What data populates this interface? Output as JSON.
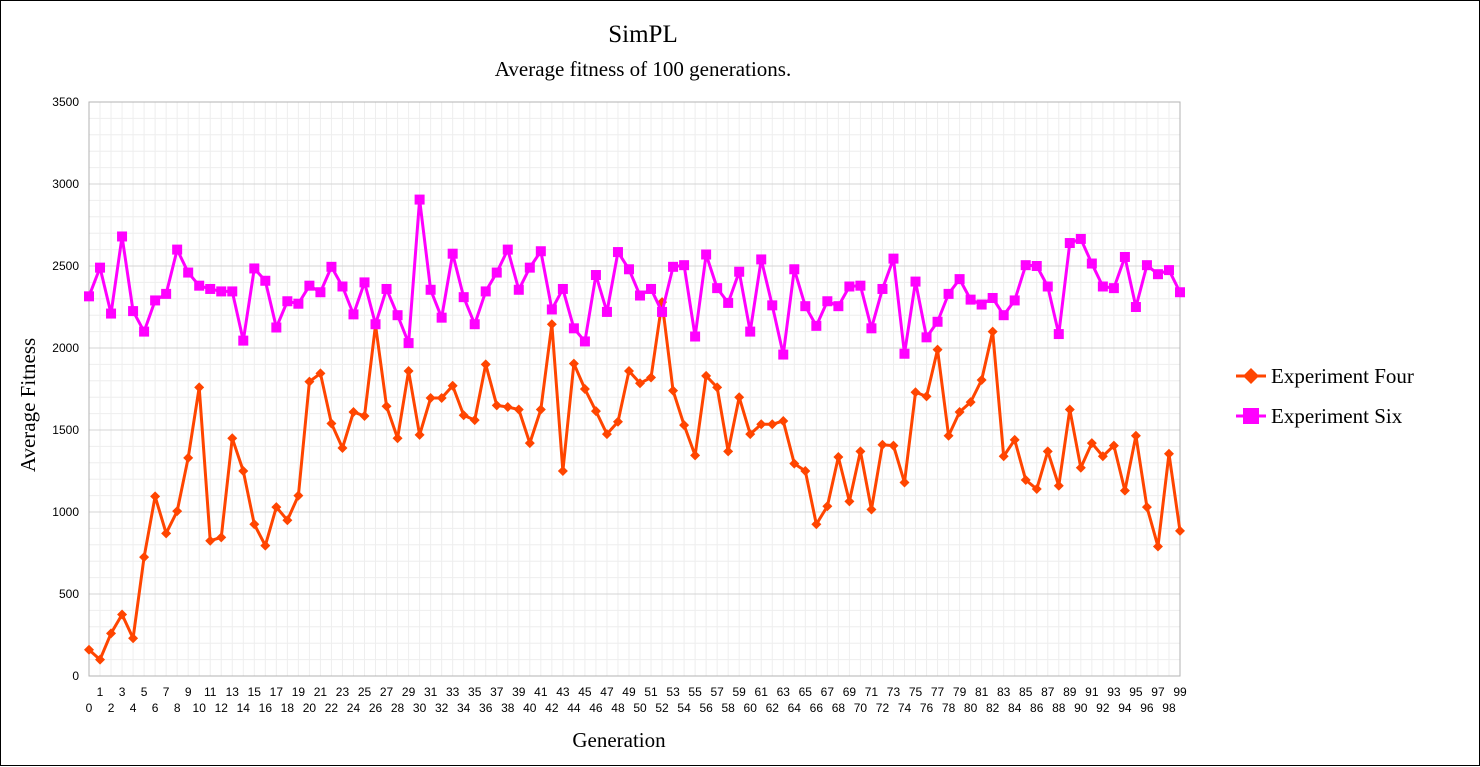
{
  "chart_data": {
    "type": "line",
    "title": "SimPL",
    "subtitle": "Average fitness of 100 generations.",
    "xlabel": "Generation",
    "ylabel": "Average Fitness",
    "ylim": [
      0,
      3500
    ],
    "yticks": [
      0,
      500,
      1000,
      1500,
      2000,
      2500,
      3000,
      3500
    ],
    "grid": true,
    "legend_position": "right",
    "x": [
      0,
      1,
      2,
      3,
      4,
      5,
      6,
      7,
      8,
      9,
      10,
      11,
      12,
      13,
      14,
      15,
      16,
      17,
      18,
      19,
      20,
      21,
      22,
      23,
      24,
      25,
      26,
      27,
      28,
      29,
      30,
      31,
      32,
      33,
      34,
      35,
      36,
      37,
      38,
      39,
      40,
      41,
      42,
      43,
      44,
      45,
      46,
      47,
      48,
      49,
      50,
      51,
      52,
      53,
      54,
      55,
      56,
      57,
      58,
      59,
      60,
      61,
      62,
      63,
      64,
      65,
      66,
      67,
      68,
      69,
      70,
      71,
      72,
      73,
      74,
      75,
      76,
      77,
      78,
      79,
      80,
      81,
      82,
      83,
      84,
      85,
      86,
      87,
      88,
      89,
      90,
      91,
      92,
      93,
      94,
      95,
      96,
      97,
      98,
      99
    ],
    "series": [
      {
        "name": "Experiment Four",
        "color": "#ff4500",
        "marker": "diamond",
        "values": [
          160,
          100,
          260,
          375,
          230,
          725,
          1095,
          870,
          1005,
          1330,
          1760,
          825,
          845,
          1450,
          1250,
          925,
          795,
          1030,
          950,
          1100,
          1795,
          1845,
          1540,
          1390,
          1610,
          1585,
          2140,
          1645,
          1450,
          1860,
          1470,
          1695,
          1695,
          1770,
          1590,
          1560,
          1900,
          1650,
          1640,
          1625,
          1420,
          1625,
          2145,
          1250,
          1905,
          1750,
          1615,
          1475,
          1550,
          1860,
          1785,
          1820,
          2280,
          1740,
          1530,
          1345,
          1830,
          1760,
          1370,
          1700,
          1475,
          1535,
          1535,
          1555,
          1295,
          1250,
          925,
          1035,
          1335,
          1065,
          1370,
          1015,
          1410,
          1405,
          1180,
          1730,
          1705,
          1990,
          1465,
          1610,
          1670,
          1805,
          2100,
          1340,
          1440,
          1195,
          1140,
          1370,
          1160,
          1625,
          1270,
          1420,
          1340,
          1405,
          1130,
          1465,
          1030,
          790,
          1355,
          885
        ]
      },
      {
        "name": "Experiment Six",
        "color": "#ff00ff",
        "marker": "square",
        "values": [
          2315,
          2490,
          2210,
          2680,
          2225,
          2100,
          2290,
          2330,
          2600,
          2460,
          2380,
          2360,
          2345,
          2345,
          2045,
          2485,
          2410,
          2125,
          2285,
          2270,
          2380,
          2340,
          2495,
          2375,
          2205,
          2400,
          2145,
          2360,
          2200,
          2030,
          2905,
          2355,
          2185,
          2575,
          2310,
          2145,
          2345,
          2460,
          2600,
          2355,
          2490,
          2590,
          2235,
          2360,
          2120,
          2040,
          2445,
          2220,
          2585,
          2480,
          2320,
          2360,
          2220,
          2495,
          2505,
          2070,
          2570,
          2365,
          2275,
          2465,
          2100,
          2540,
          2260,
          1960,
          2480,
          2255,
          2135,
          2285,
          2255,
          2375,
          2380,
          2120,
          2360,
          2545,
          1965,
          2405,
          2065,
          2160,
          2330,
          2420,
          2295,
          2265,
          2305,
          2200,
          2290,
          2505,
          2500,
          2375,
          2085,
          2640,
          2665,
          2515,
          2375,
          2365,
          2555,
          2250,
          2505,
          2450,
          2475,
          2340
        ]
      }
    ]
  }
}
